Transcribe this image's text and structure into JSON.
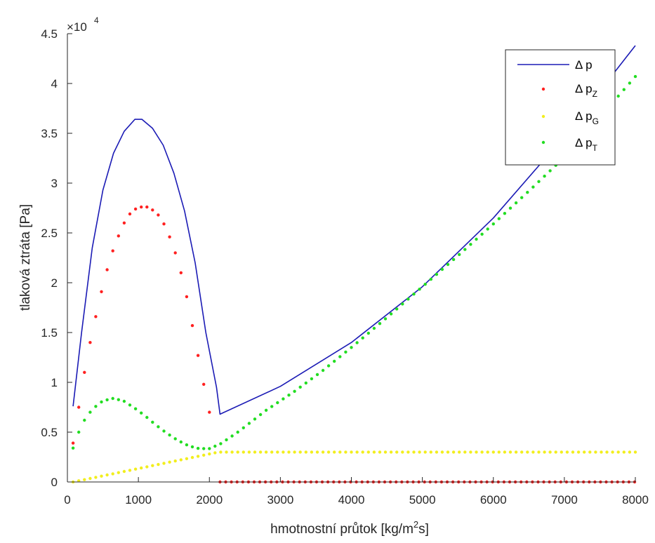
{
  "chart_data": {
    "type": "line",
    "xlabel": "hmotnostní průtok [kg/m²s]",
    "xlabel_parts": {
      "before": "hmotnostní průtok [kg/m",
      "sup": "2",
      "after": "s]"
    },
    "ylabel": "tlaková ztráta [Pa]",
    "exponent_label": {
      "base": "×10",
      "power": "4"
    },
    "xlim": [
      0,
      8000
    ],
    "ylim": [
      0,
      45000
    ],
    "x_ticks": [
      0,
      1000,
      2000,
      3000,
      4000,
      5000,
      6000,
      7000,
      8000
    ],
    "x_tick_labels": [
      "0",
      "1000",
      "2000",
      "3000",
      "4000",
      "5000",
      "6000",
      "7000",
      "8000"
    ],
    "y_ticks": [
      0,
      5000,
      10000,
      15000,
      20000,
      25000,
      30000,
      35000,
      40000,
      45000
    ],
    "y_tick_labels": [
      "0",
      "0.5",
      "1",
      "1.5",
      "2",
      "2.5",
      "3",
      "3.5",
      "4",
      "4.5"
    ],
    "grid": false,
    "legend_position": "top-right",
    "series": [
      {
        "name": "Δ p",
        "label_main": "Δ p",
        "label_sub": "",
        "style": "line",
        "color": "#1b1bb5",
        "points": [
          [
            80,
            7600
          ],
          [
            200,
            15000
          ],
          [
            350,
            23500
          ],
          [
            500,
            29300
          ],
          [
            650,
            33000
          ],
          [
            800,
            35200
          ],
          [
            950,
            36400
          ],
          [
            1050,
            36400
          ],
          [
            1200,
            35500
          ],
          [
            1350,
            33800
          ],
          [
            1500,
            31000
          ],
          [
            1650,
            27200
          ],
          [
            1800,
            22000
          ],
          [
            1950,
            15000
          ],
          [
            2100,
            9500
          ],
          [
            2150,
            6800
          ],
          [
            3000,
            9600
          ],
          [
            4000,
            14000
          ],
          [
            5000,
            19600
          ],
          [
            6000,
            26500
          ],
          [
            7000,
            34700
          ],
          [
            8000,
            43800
          ]
        ]
      },
      {
        "name": "Δ pZ",
        "label_main": "Δ p",
        "label_sub": "Z",
        "style": "dots",
        "color": "#ff2020",
        "points": [
          [
            80,
            3900
          ],
          [
            160,
            7500
          ],
          [
            240,
            11000
          ],
          [
            320,
            14000
          ],
          [
            400,
            16600
          ],
          [
            480,
            19100
          ],
          [
            560,
            21300
          ],
          [
            640,
            23200
          ],
          [
            720,
            24700
          ],
          [
            800,
            26000
          ],
          [
            880,
            26900
          ],
          [
            960,
            27400
          ],
          [
            1040,
            27600
          ],
          [
            1120,
            27600
          ],
          [
            1200,
            27300
          ],
          [
            1280,
            26800
          ],
          [
            1360,
            25900
          ],
          [
            1440,
            24600
          ],
          [
            1520,
            23000
          ],
          [
            1600,
            21000
          ],
          [
            1680,
            18600
          ],
          [
            1760,
            15700
          ],
          [
            1840,
            12700
          ],
          [
            1920,
            9800
          ],
          [
            2000,
            7000
          ]
        ],
        "zero_from": 2150,
        "zero_to": 8000
      },
      {
        "name": "Δ pG",
        "label_main": "Δ p",
        "label_sub": "G",
        "style": "dots",
        "color": "#f2ee1e",
        "points": [
          [
            80,
            0
          ],
          [
            2130,
            3000
          ],
          [
            8000,
            3000
          ]
        ]
      },
      {
        "name": "Δ pT",
        "label_main": "Δ p",
        "label_sub": "T",
        "style": "dots",
        "color": "#22dd22",
        "points": [
          [
            80,
            3400
          ],
          [
            200,
            5800
          ],
          [
            350,
            7300
          ],
          [
            500,
            8150
          ],
          [
            650,
            8400
          ],
          [
            800,
            8100
          ],
          [
            950,
            7400
          ],
          [
            1100,
            6600
          ],
          [
            1250,
            5700
          ],
          [
            1400,
            4900
          ],
          [
            1550,
            4200
          ],
          [
            1700,
            3650
          ],
          [
            1850,
            3350
          ],
          [
            2000,
            3350
          ],
          [
            2150,
            3800
          ],
          [
            2400,
            5000
          ],
          [
            2800,
            7200
          ],
          [
            3200,
            9100
          ],
          [
            3600,
            11200
          ],
          [
            4000,
            13500
          ],
          [
            4500,
            16500
          ],
          [
            5000,
            19600
          ],
          [
            5500,
            22700
          ],
          [
            6000,
            25900
          ],
          [
            6500,
            29200
          ],
          [
            7000,
            32600
          ],
          [
            7500,
            36600
          ],
          [
            8000,
            40700
          ]
        ]
      }
    ]
  }
}
